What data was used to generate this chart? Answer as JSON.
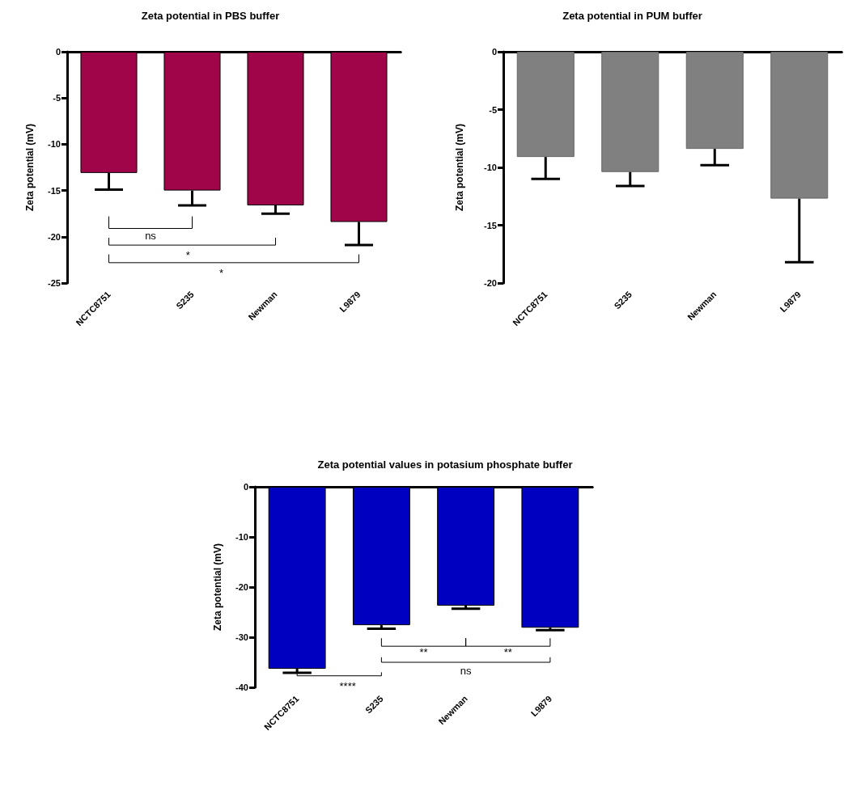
{
  "chart_data": [
    {
      "type": "bar",
      "title": "Zeta potential in PBS buffer",
      "ylabel": "Zeta potential (mV)",
      "categories": [
        "NCTC8751",
        "S235",
        "Newman",
        "L9879"
      ],
      "series": [
        {
          "color": "#a0054a",
          "values": [
            -13.1,
            -15.0,
            -16.6,
            -18.4
          ],
          "errors": [
            [
              -14.9,
              -13.1
            ],
            [
              -16.6,
              -15.0
            ],
            [
              -17.5,
              -16.6
            ],
            [
              -20.9,
              -18.4
            ]
          ]
        }
      ],
      "ylim": [
        -25,
        0
      ],
      "yticks": [
        -25,
        -20,
        -15,
        -10,
        -5,
        0
      ],
      "grid": false,
      "annotations": [
        "ns",
        "*",
        "*"
      ]
    },
    {
      "type": "bar",
      "title": "Zeta potential in PUM buffer",
      "ylabel": "Zeta potential (mV)",
      "categories": [
        "NCTC8751",
        "S235",
        "Newman",
        "L9879"
      ],
      "series": [
        {
          "color": "#808080",
          "values": [
            -9.1,
            -10.4,
            -8.4,
            -12.7
          ],
          "errors": [
            [
              -11.0,
              -9.1
            ],
            [
              -11.6,
              -10.4
            ],
            [
              -9.8,
              -8.4
            ],
            [
              -18.2,
              -12.7
            ]
          ]
        }
      ],
      "ylim": [
        -20,
        0
      ],
      "yticks": [
        -20,
        -15,
        -10,
        -5,
        0
      ],
      "grid": false
    },
    {
      "type": "bar",
      "title": "Zeta potential values in potasium phosphate buffer",
      "ylabel": "Zeta potential (mV)",
      "categories": [
        "NCTC8751",
        "S235",
        "Newman",
        "L9879"
      ],
      "series": [
        {
          "color": "#0000c0",
          "values": [
            -36.3,
            -27.6,
            -23.7,
            -28.1
          ],
          "errors": [
            [
              -37.1,
              -36.3
            ],
            [
              -28.3,
              -27.6
            ],
            [
              -24.3,
              -23.7
            ],
            [
              -28.6,
              -28.1
            ]
          ]
        }
      ],
      "ylim": [
        -40,
        0
      ],
      "yticks": [
        -40,
        -30,
        -20,
        -10,
        0
      ],
      "grid": false,
      "annotations": [
        "**",
        "**",
        "ns",
        "****"
      ]
    }
  ]
}
